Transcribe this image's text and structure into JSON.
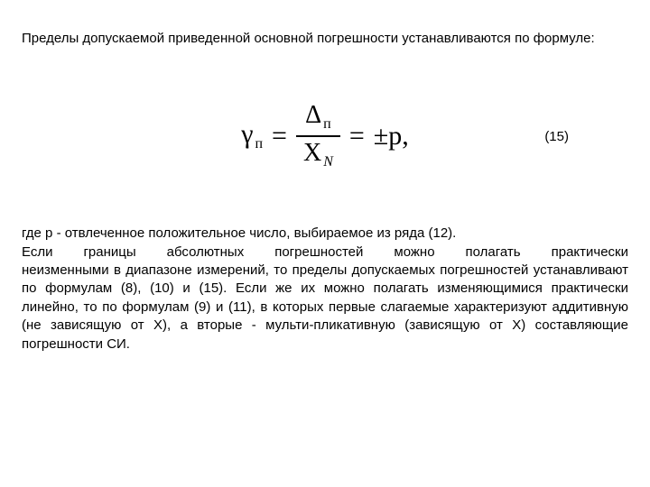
{
  "document": {
    "background_color": "#ffffff",
    "text_color": "#000000",
    "body_font_family": "Arial",
    "body_font_size_pt": 11,
    "formula_font_family": "Georgia",
    "formula_font_size_pt": 22
  },
  "intro": {
    "text": "Пределы допускаемой приведенной основной погрешности устанавливаются по формуле:"
  },
  "formula": {
    "lhs_symbol": "γ",
    "lhs_subscript": "п",
    "eq1": "=",
    "numerator_symbol": "Δ",
    "numerator_subscript": "п",
    "denominator_symbol": "X",
    "denominator_subscript_italic": "N",
    "eq2": "=",
    "rhs": "±p,",
    "equation_number": "(15)"
  },
  "body": {
    "line1": "где p - отвлеченное положительное число, выбираемое из ряда (12).",
    "line2": "Если границы абсолютных погрешностей можно полагать практически",
    "rest": "неизменными в диапазоне измерений, то пределы допускаемых погрешностей устанавливают по формулам (8), (10) и (15). Если же их можно полагать изменяющимися практически линейно, то по формулам (9) и (11), в которых первые слагаемые характеризуют аддитивную (не зависящую от X), а вторые - мульти-пликативную (зависящую от X) составляющие погрешности СИ."
  }
}
